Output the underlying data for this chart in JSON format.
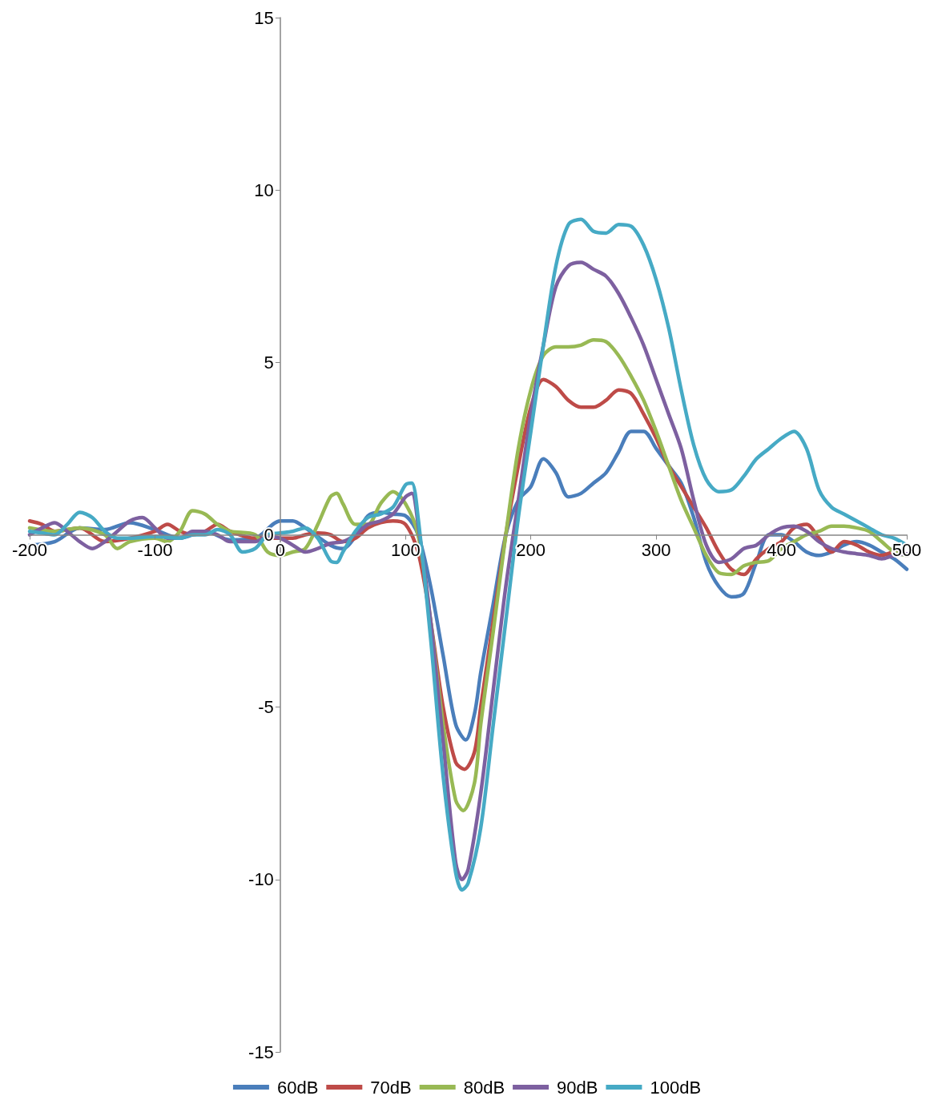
{
  "chart_data": {
    "type": "line",
    "xlim": [
      -200,
      500
    ],
    "xticks": [
      -200,
      -100,
      0,
      100,
      200,
      300,
      400,
      500
    ],
    "ylim": [
      -15,
      15
    ],
    "yticks": [
      -15,
      -10,
      -5,
      0,
      5,
      10,
      15
    ],
    "grid": false,
    "legend": "bottom",
    "marker": "none",
    "line_style": "solid",
    "series": [
      {
        "name": "60dB",
        "color": "#4a7ebb",
        "x": [
          -200,
          -180,
          -160,
          -140,
          -120,
          -100,
          -80,
          -60,
          -40,
          -20,
          0,
          10,
          20,
          40,
          50,
          60,
          70,
          80,
          90,
          100,
          110,
          120,
          130,
          140,
          148,
          155,
          160,
          170,
          180,
          190,
          200,
          210,
          220,
          230,
          240,
          250,
          260,
          270,
          280,
          290,
          300,
          310,
          320,
          330,
          340,
          350,
          360,
          370,
          380,
          390,
          400,
          410,
          420,
          430,
          440,
          450,
          460,
          470,
          480,
          490,
          500
        ],
        "values": [
          -0.3,
          -0.2,
          0.2,
          0.15,
          0.35,
          0.15,
          -0.1,
          0.1,
          -0.15,
          -0.1,
          0.4,
          0.4,
          0.2,
          -0.3,
          -0.4,
          -0.05,
          0.55,
          0.65,
          0.6,
          0.55,
          0,
          -1.5,
          -3.5,
          -5.5,
          -5.95,
          -5.2,
          -4,
          -2,
          0,
          1.0,
          1.4,
          2.2,
          1.8,
          1.1,
          1.2,
          1.5,
          1.8,
          2.4,
          3.0,
          3.0,
          2.5,
          2.0,
          1.5,
          0.5,
          -0.8,
          -1.5,
          -1.8,
          -1.7,
          -0.8,
          0,
          0,
          -0.2,
          -0.5,
          -0.6,
          -0.5,
          -0.3,
          -0.2,
          -0.3,
          -0.5,
          -0.7,
          -1.0
        ]
      },
      {
        "name": "70dB",
        "color": "#be4b48",
        "x": [
          -200,
          -190,
          -180,
          -160,
          -140,
          -120,
          -100,
          -90,
          -80,
          -70,
          -60,
          -50,
          -40,
          -20,
          0,
          10,
          20,
          30,
          40,
          50,
          60,
          70,
          80,
          90,
          100,
          110,
          120,
          130,
          140,
          147,
          155,
          160,
          170,
          180,
          190,
          200,
          210,
          220,
          230,
          240,
          250,
          260,
          270,
          280,
          290,
          300,
          310,
          320,
          330,
          340,
          350,
          360,
          370,
          380,
          390,
          400,
          410,
          420,
          430,
          440,
          450,
          460,
          470,
          480,
          490,
          500
        ],
        "values": [
          0.4,
          0.3,
          0.1,
          0.2,
          -0.2,
          -0.1,
          0.1,
          0.3,
          0.1,
          0,
          0.1,
          0.3,
          0.1,
          -0.1,
          -0.1,
          -0.1,
          0,
          0.05,
          0,
          -0.2,
          -0.1,
          0.2,
          0.35,
          0.4,
          0.3,
          -0.5,
          -2.5,
          -5,
          -6.6,
          -6.8,
          -6.3,
          -5,
          -2.5,
          0,
          2.0,
          3.7,
          4.5,
          4.3,
          3.9,
          3.7,
          3.7,
          3.9,
          4.2,
          4.1,
          3.5,
          2.8,
          2.0,
          1.4,
          0.8,
          0.2,
          -0.5,
          -1.0,
          -1.15,
          -0.7,
          -0.4,
          -0.2,
          0.2,
          0.3,
          -0.1,
          -0.5,
          -0.2,
          -0.3,
          -0.5,
          -0.6,
          -0.5,
          -0.6
        ]
      },
      {
        "name": "80dB",
        "color": "#98b954",
        "x": [
          -200,
          -180,
          -160,
          -140,
          -130,
          -120,
          -100,
          -90,
          -80,
          -70,
          -60,
          -50,
          -40,
          -20,
          -10,
          0,
          10,
          20,
          30,
          40,
          45,
          50,
          60,
          70,
          80,
          90,
          100,
          110,
          120,
          130,
          140,
          146,
          155,
          160,
          170,
          180,
          190,
          200,
          210,
          220,
          230,
          240,
          250,
          260,
          270,
          280,
          290,
          300,
          310,
          320,
          330,
          340,
          350,
          360,
          370,
          380,
          390,
          400,
          410,
          420,
          430,
          440,
          450,
          460,
          470,
          480,
          490,
          500
        ],
        "values": [
          0.2,
          0.1,
          0.2,
          0,
          -0.4,
          -0.2,
          -0.1,
          -0.2,
          0.1,
          0.7,
          0.6,
          0.3,
          0.1,
          0,
          -0.5,
          -0.6,
          -0.5,
          -0.4,
          0.3,
          1.1,
          1.2,
          0.9,
          0.3,
          0.3,
          0.9,
          1.25,
          0.9,
          0,
          -2.5,
          -5.5,
          -7.7,
          -8.0,
          -7.2,
          -5.5,
          -2.8,
          0,
          2.5,
          4.2,
          5.2,
          5.45,
          5.45,
          5.5,
          5.65,
          5.6,
          5.2,
          4.6,
          3.9,
          3.0,
          2.0,
          1.0,
          0.2,
          -0.6,
          -1.1,
          -1.15,
          -0.9,
          -0.8,
          -0.75,
          -0.4,
          -0.2,
          0,
          0.1,
          0.25,
          0.25,
          0.2,
          0.1,
          -0.2,
          -0.5,
          -0.6
        ]
      },
      {
        "name": "90dB",
        "color": "#7d60a0",
        "x": [
          -200,
          -190,
          -180,
          -170,
          -160,
          -150,
          -140,
          -130,
          -120,
          -110,
          -100,
          -90,
          -80,
          -70,
          -60,
          -50,
          -40,
          -30,
          -20,
          -10,
          0,
          10,
          20,
          30,
          40,
          50,
          60,
          70,
          80,
          90,
          100,
          105,
          110,
          120,
          130,
          140,
          145,
          150,
          160,
          170,
          180,
          190,
          200,
          210,
          220,
          230,
          240,
          250,
          260,
          270,
          280,
          290,
          300,
          310,
          320,
          330,
          340,
          350,
          360,
          370,
          380,
          390,
          400,
          410,
          420,
          430,
          440,
          450,
          460,
          470,
          480,
          490,
          500
        ],
        "values": [
          0,
          0.2,
          0.35,
          0.1,
          -0.2,
          -0.4,
          -0.2,
          0.1,
          0.4,
          0.5,
          0.2,
          -0.1,
          -0.1,
          0.1,
          0.1,
          0,
          -0.2,
          -0.2,
          -0.2,
          -0.05,
          -0.1,
          -0.3,
          -0.5,
          -0.4,
          -0.25,
          -0.2,
          0,
          0.3,
          0.4,
          0.6,
          1.1,
          1.2,
          0.3,
          -2.5,
          -6,
          -9.5,
          -10.0,
          -9.7,
          -7.5,
          -4.5,
          -1.5,
          1.0,
          3.5,
          5.5,
          7.2,
          7.8,
          7.9,
          7.7,
          7.5,
          7.0,
          6.3,
          5.5,
          4.5,
          3.5,
          2.5,
          1.0,
          -0.3,
          -0.8,
          -0.7,
          -0.4,
          -0.3,
          0,
          0.2,
          0.25,
          0.1,
          -0.2,
          -0.4,
          -0.5,
          -0.55,
          -0.6,
          -0.7,
          -0.6,
          -0.55
        ]
      },
      {
        "name": "100dB",
        "color": "#46aac5",
        "x": [
          -200,
          -190,
          -180,
          -170,
          -160,
          -150,
          -140,
          -130,
          -120,
          -100,
          -80,
          -70,
          -60,
          -50,
          -40,
          -30,
          -20,
          -10,
          0,
          10,
          20,
          30,
          40,
          45,
          50,
          60,
          70,
          80,
          90,
          100,
          105,
          110,
          120,
          130,
          140,
          145,
          150,
          160,
          170,
          180,
          190,
          200,
          210,
          220,
          230,
          240,
          250,
          260,
          270,
          280,
          290,
          300,
          310,
          320,
          330,
          340,
          350,
          360,
          370,
          380,
          390,
          400,
          410,
          420,
          430,
          440,
          450,
          460,
          470,
          480,
          490,
          500
        ],
        "values": [
          0.1,
          0.05,
          0,
          0.3,
          0.65,
          0.5,
          0.1,
          -0.1,
          -0.1,
          -0.05,
          -0.1,
          0,
          0,
          0.15,
          0,
          -0.5,
          -0.4,
          0,
          0.05,
          0.1,
          0.2,
          -0.1,
          -0.75,
          -0.8,
          -0.5,
          0.1,
          0.5,
          0.6,
          0.8,
          1.45,
          1.5,
          0.5,
          -3,
          -7,
          -9.8,
          -10.3,
          -10.1,
          -8.5,
          -5.5,
          -2.5,
          0.5,
          3.0,
          5.5,
          7.8,
          9.0,
          9.15,
          8.8,
          8.75,
          9.0,
          8.95,
          8.4,
          7.4,
          6.0,
          4.2,
          2.6,
          1.6,
          1.25,
          1.3,
          1.7,
          2.2,
          2.5,
          2.8,
          3.0,
          2.5,
          1.3,
          0.8,
          0.6,
          0.4,
          0.2,
          0,
          -0.1,
          -0.3
        ]
      }
    ]
  }
}
